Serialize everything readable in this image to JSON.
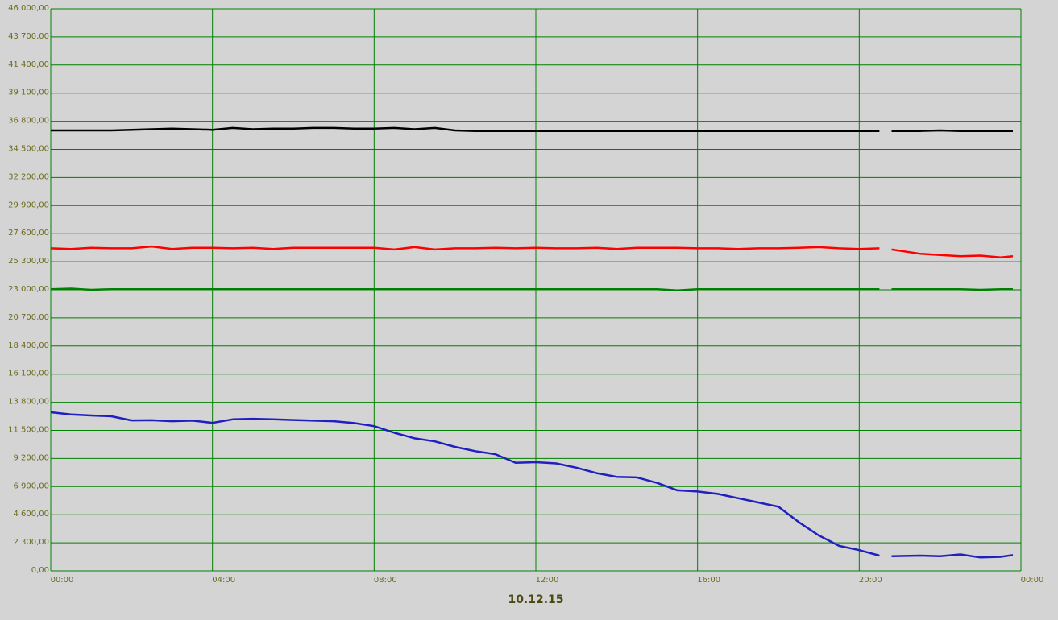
{
  "chart_data": {
    "type": "line",
    "x_label": "10.12.15",
    "x": [
      0,
      0.5,
      1,
      1.5,
      2,
      2.5,
      3,
      3.5,
      4,
      4.5,
      5,
      5.5,
      6,
      6.5,
      7,
      7.5,
      8,
      8.5,
      9,
      9.5,
      10,
      10.5,
      11,
      11.5,
      12,
      12.5,
      13,
      13.5,
      14,
      14.5,
      15,
      15.5,
      16,
      16.5,
      17,
      17.5,
      18,
      18.5,
      19,
      19.5,
      20,
      20.5,
      20.65,
      20.8,
      21.5,
      22,
      22.5,
      23,
      23.5,
      23.8
    ],
    "xlim": [
      0,
      24
    ],
    "xticks": [
      {
        "value": 0,
        "label": "00:00"
      },
      {
        "value": 4,
        "label": "04:00"
      },
      {
        "value": 8,
        "label": "08:00"
      },
      {
        "value": 12,
        "label": "12:00"
      },
      {
        "value": 16,
        "label": "16:00"
      },
      {
        "value": 20,
        "label": "20:00"
      },
      {
        "value": 24,
        "label": "00:00"
      }
    ],
    "ylim": [
      0,
      46000
    ],
    "yticks": [
      {
        "value": 0,
        "label": "0,00"
      },
      {
        "value": 2300,
        "label": "2 300,00"
      },
      {
        "value": 4600,
        "label": "4 600,00"
      },
      {
        "value": 6900,
        "label": "6 900,00"
      },
      {
        "value": 9200,
        "label": "9 200,00"
      },
      {
        "value": 11500,
        "label": "11 500,00"
      },
      {
        "value": 13800,
        "label": "13 800,00"
      },
      {
        "value": 16100,
        "label": "16 100,00"
      },
      {
        "value": 18400,
        "label": "18 400,00"
      },
      {
        "value": 20700,
        "label": "20 700,00"
      },
      {
        "value": 23000,
        "label": "23 000,00"
      },
      {
        "value": 25300,
        "label": "25 300,00"
      },
      {
        "value": 27600,
        "label": "27 600,00"
      },
      {
        "value": 29900,
        "label": "29 900,00"
      },
      {
        "value": 32200,
        "label": "32 200,00"
      },
      {
        "value": 34500,
        "label": "34 500,00"
      },
      {
        "value": 36800,
        "label": "36 800,00"
      },
      {
        "value": 39100,
        "label": "39 100,00"
      },
      {
        "value": 41400,
        "label": "41 400,00"
      },
      {
        "value": 43700,
        "label": "43 700,00"
      },
      {
        "value": 46000,
        "label": "46 000,00"
      }
    ],
    "grid": true,
    "grid_color": "#008000",
    "series": [
      {
        "color": "#000000",
        "values": [
          36050,
          36050,
          36050,
          36050,
          36100,
          36150,
          36200,
          36150,
          36100,
          36250,
          36150,
          36200,
          36200,
          36250,
          36250,
          36200,
          36200,
          36250,
          36150,
          36250,
          36050,
          36000,
          36000,
          36000,
          36000,
          36000,
          36000,
          36000,
          36000,
          36000,
          36000,
          36000,
          36000,
          36000,
          36000,
          36000,
          36000,
          36000,
          36000,
          36000,
          36000,
          36000,
          null,
          36000,
          36000,
          36050,
          36000,
          36000,
          36000,
          36000
        ]
      },
      {
        "color": "#ff0000",
        "values": [
          26400,
          26350,
          26450,
          26400,
          26400,
          26550,
          26350,
          26450,
          26450,
          26400,
          26450,
          26350,
          26450,
          26450,
          26450,
          26450,
          26450,
          26300,
          26500,
          26300,
          26400,
          26400,
          26450,
          26400,
          26450,
          26400,
          26400,
          26450,
          26350,
          26450,
          26450,
          26450,
          26400,
          26400,
          26350,
          26400,
          26400,
          26450,
          26500,
          26400,
          26350,
          26400,
          null,
          26300,
          25950,
          25850,
          25750,
          25800,
          25650,
          25750
        ]
      },
      {
        "color": "#008000",
        "values": [
          23050,
          23100,
          23000,
          23050,
          23050,
          23050,
          23050,
          23050,
          23050,
          23050,
          23050,
          23050,
          23050,
          23050,
          23050,
          23050,
          23050,
          23050,
          23050,
          23050,
          23050,
          23050,
          23050,
          23050,
          23050,
          23050,
          23050,
          23050,
          23050,
          23050,
          23050,
          22950,
          23050,
          23050,
          23050,
          23050,
          23050,
          23050,
          23050,
          23050,
          23050,
          23050,
          null,
          23050,
          23050,
          23050,
          23050,
          23000,
          23050,
          23050
        ]
      },
      {
        "color": "#2020c0",
        "values": [
          12980,
          12800,
          12720,
          12650,
          12320,
          12330,
          12250,
          12300,
          12120,
          12400,
          12450,
          12400,
          12350,
          12300,
          12250,
          12100,
          11850,
          11300,
          10850,
          10600,
          10150,
          9800,
          9550,
          8850,
          8900,
          8800,
          8450,
          8000,
          7700,
          7650,
          7200,
          6600,
          6500,
          6300,
          5950,
          5600,
          5250,
          4000,
          2900,
          2050,
          1700,
          1250,
          null,
          1200,
          1250,
          1200,
          1350,
          1100,
          1150,
          1300
        ]
      }
    ]
  }
}
